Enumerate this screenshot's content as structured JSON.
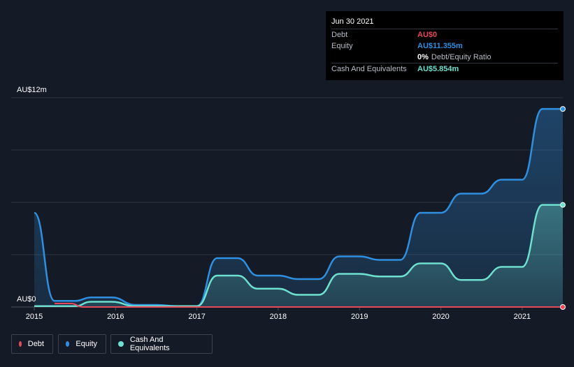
{
  "tooltip": {
    "date": "Jun 30 2021",
    "rows": [
      {
        "label": "Debt",
        "value": "AU$0"
      },
      {
        "label": "Equity",
        "value": "AU$11.355m"
      },
      {
        "label": "",
        "value": "0%",
        "extra": "Debt/Equity Ratio"
      },
      {
        "label": "Cash And Equivalents",
        "value": "AU$5.854m"
      }
    ]
  },
  "legend": {
    "debt": "Debt",
    "equity": "Equity",
    "cash": "Cash And Equivalents"
  },
  "colors": {
    "debt": "#e64a5a",
    "equity": "#2f8fe0",
    "cash": "#6ee0cf",
    "background": "#151b26"
  },
  "chart_data": {
    "type": "area",
    "title": "",
    "xlabel": "",
    "ylabel": "",
    "y_axis_labels": [
      "AU$12m",
      "AU$0"
    ],
    "x_tick_labels": [
      "2015",
      "2016",
      "2017",
      "2018",
      "2019",
      "2020",
      "2021"
    ],
    "x_ticks": [
      2015,
      2016,
      2017,
      2018,
      2019,
      2020,
      2021
    ],
    "xlim": [
      2015.0,
      2021.5
    ],
    "ylim": [
      0,
      12
    ],
    "series": [
      {
        "name": "Equity",
        "x": [
          2015.0,
          2015.25,
          2015.5,
          2015.7,
          2015.95,
          2016.25,
          2016.5,
          2016.75,
          2017.0,
          2017.25,
          2017.5,
          2017.75,
          2018.0,
          2018.25,
          2018.5,
          2018.75,
          2019.0,
          2019.25,
          2019.5,
          2019.75,
          2020.0,
          2020.25,
          2020.5,
          2020.75,
          2021.0,
          2021.25,
          2021.5
        ],
        "values": [
          5.4,
          0.35,
          0.35,
          0.55,
          0.55,
          0.12,
          0.12,
          0.05,
          0.05,
          2.8,
          2.8,
          1.8,
          1.8,
          1.6,
          1.6,
          2.9,
          2.9,
          2.7,
          2.7,
          5.4,
          5.4,
          6.5,
          6.5,
          7.3,
          7.3,
          11.355,
          11.355
        ]
      },
      {
        "name": "Cash And Equivalents",
        "x": [
          2015.0,
          2015.25,
          2015.5,
          2015.7,
          2015.95,
          2016.25,
          2016.5,
          2016.75,
          2017.0,
          2017.25,
          2017.5,
          2017.75,
          2018.0,
          2018.25,
          2018.5,
          2018.75,
          2019.0,
          2019.25,
          2019.5,
          2019.75,
          2020.0,
          2020.25,
          2020.5,
          2020.75,
          2021.0,
          2021.25,
          2021.5
        ],
        "values": [
          0.05,
          0.05,
          0.05,
          0.3,
          0.3,
          0.05,
          0.05,
          0.05,
          0.05,
          1.8,
          1.8,
          1.05,
          1.05,
          0.7,
          0.7,
          1.9,
          1.9,
          1.75,
          1.75,
          2.5,
          2.5,
          1.55,
          1.55,
          2.3,
          2.3,
          5.854,
          5.854
        ]
      },
      {
        "name": "Debt",
        "x": [
          2015.25,
          2015.45,
          2015.6,
          2021.5
        ],
        "values": [
          0.2,
          0.2,
          0.0,
          0.0
        ]
      }
    ]
  }
}
